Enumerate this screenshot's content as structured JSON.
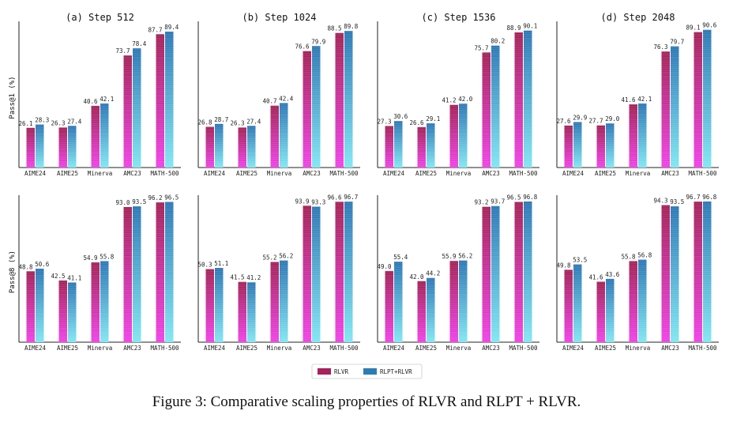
{
  "caption": "Figure 3: Comparative scaling properties of RLVR and RLPT + RLVR.",
  "row_labels": [
    "Pass@1 (%)",
    "Pass@8 (%)"
  ],
  "legend": [
    {
      "name": "RLVR",
      "color": "#a8205c"
    },
    {
      "name": "RLPT+RLVR",
      "color": "#2c7db5"
    }
  ],
  "colors": {
    "rlvr_top": "#a31f55",
    "rlvr_bottom": "#f03fe6",
    "rlpt_top": "#2a76b5",
    "rlpt_bottom": "#7fe6f2"
  },
  "chart_data": [
    {
      "type": "bar",
      "title": "(a) Step 512",
      "ylabel": "Pass@1 (%)",
      "categories": [
        "AIME24",
        "AIME25",
        "Minerva",
        "AMC23",
        "MATH-500"
      ],
      "ylim": [
        0,
        92
      ],
      "series": [
        {
          "name": "RLVR",
          "values": [
            26.1,
            26.3,
            40.6,
            73.7,
            87.7
          ]
        },
        {
          "name": "RLPT+RLVR",
          "values": [
            28.3,
            27.4,
            42.1,
            78.4,
            89.4
          ]
        }
      ]
    },
    {
      "type": "bar",
      "title": "(b) Step 1024",
      "ylabel": "",
      "categories": [
        "AIME24",
        "AIME25",
        "Minerva",
        "AMC23",
        "MATH-500"
      ],
      "ylim": [
        0,
        92
      ],
      "series": [
        {
          "name": "RLVR",
          "values": [
            26.8,
            26.3,
            40.7,
            76.6,
            88.5
          ]
        },
        {
          "name": "RLPT+RLVR",
          "values": [
            28.7,
            27.4,
            42.4,
            79.9,
            89.8
          ]
        }
      ]
    },
    {
      "type": "bar",
      "title": "(c) Step 1536",
      "ylabel": "",
      "categories": [
        "AIME24",
        "AIME25",
        "Minerva",
        "AMC23",
        "MATH-500"
      ],
      "ylim": [
        0,
        92
      ],
      "series": [
        {
          "name": "RLVR",
          "values": [
            27.3,
            26.6,
            41.2,
            75.7,
            88.9
          ]
        },
        {
          "name": "RLPT+RLVR",
          "values": [
            30.6,
            29.1,
            42.0,
            80.2,
            90.1
          ]
        }
      ]
    },
    {
      "type": "bar",
      "title": "(d) Step 2048",
      "ylabel": "",
      "categories": [
        "AIME24",
        "AIME25",
        "Minerva",
        "AMC23",
        "MATH-500"
      ],
      "ylim": [
        0,
        92
      ],
      "series": [
        {
          "name": "RLVR",
          "values": [
            27.6,
            27.7,
            41.6,
            76.3,
            89.1
          ]
        },
        {
          "name": "RLPT+RLVR",
          "values": [
            29.9,
            29.0,
            42.1,
            79.7,
            90.6
          ]
        }
      ]
    },
    {
      "type": "bar",
      "title": "",
      "ylabel": "Pass@8 (%)",
      "categories": [
        "AIME24",
        "AIME25",
        "Minerva",
        "AMC23",
        "MATH-500"
      ],
      "ylim": [
        0,
        96.8
      ],
      "series": [
        {
          "name": "RLVR",
          "values": [
            48.8,
            42.5,
            54.9,
            93.0,
            96.2
          ]
        },
        {
          "name": "RLPT+RLVR",
          "values": [
            50.6,
            41.1,
            55.8,
            93.5,
            96.5
          ]
        }
      ]
    },
    {
      "type": "bar",
      "title": "",
      "ylabel": "",
      "categories": [
        "AIME24",
        "AIME25",
        "Minerva",
        "AMC23",
        "MATH-500"
      ],
      "ylim": [
        0,
        96.8
      ],
      "series": [
        {
          "name": "RLVR",
          "values": [
            50.3,
            41.5,
            55.2,
            93.9,
            96.6
          ]
        },
        {
          "name": "RLPT+RLVR",
          "values": [
            51.1,
            41.2,
            56.2,
            93.3,
            96.7
          ]
        }
      ]
    },
    {
      "type": "bar",
      "title": "",
      "ylabel": "",
      "categories": [
        "AIME24",
        "AIME25",
        "Minerva",
        "AMC23",
        "MATH-500"
      ],
      "ylim": [
        0,
        96.8
      ],
      "series": [
        {
          "name": "RLVR",
          "values": [
            49.0,
            42.0,
            55.9,
            93.2,
            96.5
          ]
        },
        {
          "name": "RLPT+RLVR",
          "values": [
            55.4,
            44.2,
            56.2,
            93.7,
            96.8
          ]
        }
      ]
    },
    {
      "type": "bar",
      "title": "",
      "ylabel": "",
      "categories": [
        "AIME24",
        "AIME25",
        "Minerva",
        "AMC23",
        "MATH-500"
      ],
      "ylim": [
        0,
        96.8
      ],
      "series": [
        {
          "name": "RLVR",
          "values": [
            49.8,
            41.6,
            55.8,
            94.3,
            96.7
          ]
        },
        {
          "name": "RLPT+RLVR",
          "values": [
            53.5,
            43.6,
            56.8,
            93.5,
            96.8
          ]
        }
      ]
    }
  ]
}
